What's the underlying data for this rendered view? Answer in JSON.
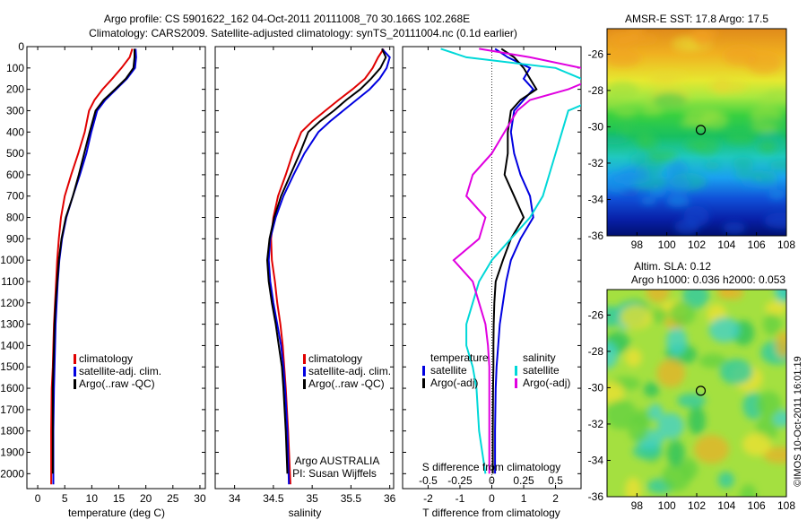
{
  "header": {
    "line1": "Argo profile: CS 5901622_162 04-Oct-2011 20111008_70 30.166S 102.268E",
    "line2": "Climatology: CARS2009. Satellite-adjusted climatology: synTS_20111004.nc (0.1d earlier)"
  },
  "side_stamp": "©IMOS 10-Oct-2011 16:01:19",
  "chart_data": [
    {
      "type": "line",
      "id": "temperature",
      "xlabel": "temperature (deg C)",
      "ylabel": "",
      "xlim": [
        -2,
        31
      ],
      "ylim": [
        2070,
        0
      ],
      "xticks": [
        0,
        5,
        10,
        15,
        20,
        25,
        30
      ],
      "yticks": [
        0,
        100,
        200,
        300,
        400,
        500,
        600,
        700,
        800,
        900,
        1000,
        1100,
        1200,
        1300,
        1400,
        1500,
        1600,
        1700,
        1800,
        1900,
        2000
      ],
      "legend": [
        "climatology",
        "satellite-adj. clim.",
        "Argo(..raw -QC)"
      ],
      "series": [
        {
          "name": "climatology",
          "color": "#e00000",
          "x": [
            17.5,
            17.0,
            15.5,
            13.8,
            12.0,
            10.5,
            9.5,
            8.7,
            7.5,
            6.2,
            5.0,
            4.3,
            3.9,
            3.6,
            3.4,
            3.2,
            3.0,
            2.9,
            2.8,
            2.6,
            2.5,
            2.5
          ],
          "y": [
            10,
            50,
            100,
            150,
            200,
            250,
            300,
            400,
            500,
            600,
            700,
            800,
            900,
            1000,
            1100,
            1200,
            1300,
            1400,
            1500,
            1600,
            1800,
            2050
          ]
        },
        {
          "name": "satellite-adj. clim.",
          "color": "#0000e0",
          "x": [
            18.1,
            18.2,
            18.0,
            16.5,
            14.5,
            12.5,
            11.0,
            9.9,
            9.0,
            7.8,
            6.5,
            5.3,
            4.5,
            4.0,
            3.7,
            3.5,
            3.3,
            3.2,
            3.1,
            3.0,
            2.9,
            2.9
          ],
          "y": [
            10,
            50,
            100,
            150,
            200,
            250,
            300,
            400,
            500,
            600,
            700,
            800,
            900,
            1000,
            1100,
            1200,
            1300,
            1400,
            1500,
            1600,
            1800,
            2050
          ]
        },
        {
          "name": "Argo(..raw -QC)",
          "color": "#000000",
          "x": [
            17.9,
            17.9,
            17.7,
            16.3,
            14.3,
            12.2,
            10.7,
            9.6,
            8.6,
            7.6,
            6.5,
            5.2,
            4.4,
            3.9,
            3.6,
            3.3,
            3.1,
            3.0,
            2.9,
            2.8,
            2.8,
            2.8
          ],
          "y": [
            10,
            50,
            100,
            150,
            200,
            250,
            300,
            400,
            500,
            600,
            700,
            800,
            900,
            1000,
            1100,
            1200,
            1300,
            1400,
            1500,
            1600,
            1800,
            2000
          ]
        }
      ]
    },
    {
      "type": "line",
      "id": "salinity",
      "xlabel": "salinity",
      "ylabel": "",
      "xlim": [
        33.75,
        36.05
      ],
      "ylim": [
        2070,
        0
      ],
      "xticks": [
        34,
        34.5,
        35,
        35.5,
        36
      ],
      "xtick_labels": [
        "34",
        "34.5",
        "35",
        "35.5",
        "36"
      ],
      "legend": [
        "climatology",
        "satellite-adj. clim.",
        "Argo(..raw -QC)"
      ],
      "annotation": [
        "Argo AUSTRALIA",
        "PI: Susan Wijffels"
      ],
      "series": [
        {
          "name": "climatology",
          "color": "#e00000",
          "x": [
            35.92,
            35.85,
            35.78,
            35.68,
            35.52,
            35.34,
            35.17,
            35.0,
            34.86,
            34.75,
            34.66,
            34.56,
            34.5,
            34.47,
            34.48,
            34.52,
            34.55,
            34.59,
            34.62,
            34.64,
            34.66,
            34.69,
            34.72
          ],
          "y": [
            10,
            50,
            100,
            150,
            200,
            250,
            300,
            350,
            400,
            500,
            600,
            700,
            800,
            900,
            1000,
            1100,
            1200,
            1300,
            1400,
            1500,
            1600,
            1800,
            2050
          ]
        },
        {
          "name": "satellite-adj. clim.",
          "color": "#0000e0",
          "x": [
            35.9,
            36.0,
            35.96,
            35.87,
            35.74,
            35.57,
            35.4,
            35.23,
            35.08,
            34.9,
            34.76,
            34.63,
            34.53,
            34.46,
            34.44,
            34.46,
            34.5,
            34.55,
            34.6,
            34.63,
            34.65,
            34.68,
            34.7
          ],
          "y": [
            10,
            50,
            100,
            150,
            200,
            250,
            300,
            350,
            400,
            500,
            600,
            700,
            800,
            900,
            1000,
            1100,
            1200,
            1300,
            1400,
            1500,
            1600,
            1800,
            2050
          ]
        },
        {
          "name": "Argo(..raw -QC)",
          "color": "#000000",
          "x": [
            35.9,
            35.95,
            35.88,
            35.76,
            35.62,
            35.44,
            35.28,
            35.1,
            34.95,
            34.84,
            34.72,
            34.6,
            34.51,
            34.45,
            34.42,
            34.44,
            34.48,
            34.53,
            34.57,
            34.61,
            34.63,
            34.66,
            34.68
          ],
          "y": [
            10,
            50,
            100,
            150,
            200,
            250,
            300,
            350,
            400,
            500,
            600,
            700,
            800,
            900,
            1000,
            1100,
            1200,
            1300,
            1400,
            1500,
            1600,
            1800,
            2000
          ]
        }
      ]
    },
    {
      "type": "line",
      "id": "differences",
      "xlabel": "T difference from climatology",
      "top_label": "S difference from climatology",
      "xlim": [
        -2.8,
        2.8
      ],
      "ylim": [
        2070,
        0
      ],
      "xticks": [
        -2,
        -1,
        0,
        1,
        2
      ],
      "top_ticks": [
        -0.5,
        -0.25,
        0,
        0.25,
        0.5
      ],
      "top_tick_labels": [
        "-0.5",
        "-0.25",
        "0",
        "0.25",
        "0.5"
      ],
      "legend_temperature_title": "temperature",
      "legend_salinity_title": "salinity",
      "legend_temperature": [
        "satellite",
        "Argo(-adj)"
      ],
      "legend_salinity": [
        "satellite",
        "Argo(-adj)"
      ],
      "series": [
        {
          "name": "satellite",
          "color": "#0000e0",
          "x": [
            0.1,
            0.5,
            1.2,
            1.0,
            1.3,
            1.0,
            0.7,
            0.6,
            0.7,
            0.9,
            1.2,
            1.3,
            0.9,
            0.6,
            0.45,
            0.35,
            0.25,
            0.2,
            0.15,
            0.12,
            0.1,
            0.1
          ],
          "y": [
            10,
            50,
            100,
            150,
            200,
            250,
            300,
            400,
            500,
            600,
            700,
            800,
            900,
            1000,
            1100,
            1200,
            1300,
            1400,
            1500,
            1600,
            1800,
            2000
          ]
        },
        {
          "name": "Argo(-adj)",
          "color": "#000000",
          "x": [
            0.3,
            0.7,
            1.0,
            1.2,
            1.4,
            0.9,
            0.6,
            0.5,
            0.5,
            0.4,
            0.7,
            1.0,
            0.6,
            0.35,
            0.12,
            0.08,
            0.06,
            0.05,
            0.05,
            0.04,
            0.03,
            0.03
          ],
          "y": [
            10,
            50,
            100,
            150,
            200,
            250,
            300,
            400,
            500,
            600,
            700,
            800,
            900,
            1000,
            1100,
            1200,
            1300,
            1400,
            1500,
            1600,
            1800,
            2000
          ]
        },
        {
          "name": "satellite S",
          "color": "#00d8d8",
          "x": [
            -0.4,
            -0.2,
            0.5,
            0.7,
            0.9,
            0.8,
            0.6,
            0.55,
            0.5,
            0.45,
            0.4,
            0.3,
            0.15,
            0.0,
            -0.1,
            -0.15,
            -0.2,
            -0.2,
            -0.15,
            -0.12,
            -0.1,
            -0.05
          ],
          "y": [
            10,
            50,
            100,
            150,
            200,
            250,
            300,
            400,
            500,
            600,
            700,
            800,
            900,
            1000,
            1100,
            1200,
            1300,
            1400,
            1500,
            1600,
            1800,
            2000
          ]
        },
        {
          "name": "Argo(-adj) S",
          "color": "#e000e0",
          "x": [
            -0.1,
            0.3,
            0.7,
            0.8,
            0.6,
            0.3,
            0.2,
            0.1,
            0.0,
            -0.15,
            -0.2,
            -0.05,
            -0.1,
            -0.3,
            -0.15,
            -0.1,
            -0.05,
            -0.03,
            -0.02,
            -0.02,
            -0.02,
            -0.02
          ],
          "y": [
            10,
            50,
            100,
            150,
            200,
            250,
            300,
            400,
            500,
            600,
            700,
            800,
            900,
            1000,
            1100,
            1200,
            1300,
            1400,
            1500,
            1600,
            1800,
            2000
          ]
        }
      ]
    },
    {
      "type": "heatmap",
      "id": "sst_map",
      "title": "AMSR-E SST: 17.8 Argo: 17.5",
      "xlim": [
        96,
        108
      ],
      "ylim": [
        -36,
        -24.6
      ],
      "xticks": [
        98,
        100,
        102,
        104,
        106,
        108
      ],
      "yticks": [
        -26,
        -28,
        -30,
        -32,
        -34,
        -36
      ],
      "marker": {
        "lon": 102.27,
        "lat": -30.17
      }
    },
    {
      "type": "heatmap",
      "id": "sla_map",
      "title": "Altim. SLA: 0.12",
      "subtitle": "Argo h1000: 0.036 h2000: 0.053",
      "xlim": [
        96,
        108
      ],
      "ylim": [
        -36,
        -24.6
      ],
      "xticks": [
        98,
        100,
        102,
        104,
        106,
        108
      ],
      "yticks": [
        -26,
        -28,
        -30,
        -32,
        -34,
        -36
      ],
      "marker": {
        "lon": 102.27,
        "lat": -30.17
      }
    }
  ]
}
